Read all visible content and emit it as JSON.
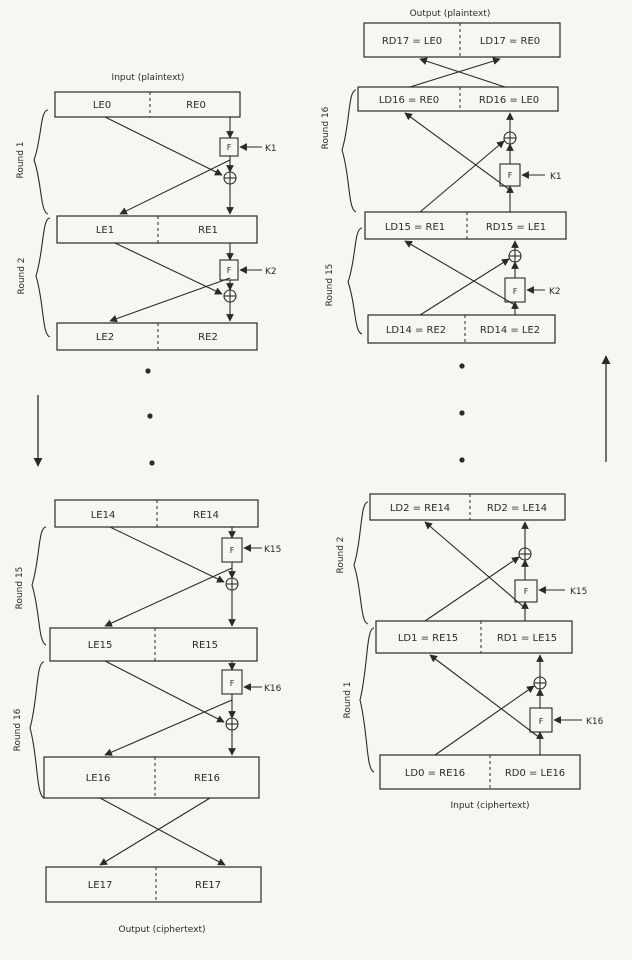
{
  "encryption": {
    "input_label": "Input (plaintext)",
    "output_label": "Output (ciphertext)",
    "rows": [
      {
        "left": "LE0",
        "right": "RE0"
      },
      {
        "left": "LE1",
        "right": "RE1"
      },
      {
        "left": "LE2",
        "right": "RE2"
      },
      {
        "left": "LE14",
        "right": "RE14"
      },
      {
        "left": "LE15",
        "right": "RE15"
      },
      {
        "left": "LE16",
        "right": "RE16"
      },
      {
        "left": "LE17",
        "right": "RE17"
      }
    ],
    "rounds": [
      "Round 1",
      "Round 2",
      "Round 15",
      "Round 16"
    ],
    "keys": [
      "K1",
      "K2",
      "K15",
      "K16"
    ],
    "f_label": "F"
  },
  "decryption": {
    "output_label": "Output (plaintext)",
    "input_label": "Input (ciphertext)",
    "rows": [
      {
        "left": "RD17 = LE0",
        "right": "LD17 = RE0"
      },
      {
        "left": "LD16 = RE0",
        "right": "RD16 = LE0"
      },
      {
        "left": "LD15 = RE1",
        "right": "RD15 = LE1"
      },
      {
        "left": "LD14 = RE2",
        "right": "RD14 = LE2"
      },
      {
        "left": "LD2 = RE14",
        "right": "RD2 = LE14"
      },
      {
        "left": "LD1 = RE15",
        "right": "RD1 = LE15"
      },
      {
        "left": "LD0 = RE16",
        "right": "RD0 = LE16"
      }
    ],
    "rounds": [
      "Round 16",
      "Round 15",
      "Round 2",
      "Round 1"
    ],
    "keys": [
      "K1",
      "K2",
      "K15",
      "K16"
    ],
    "f_label": "F"
  }
}
